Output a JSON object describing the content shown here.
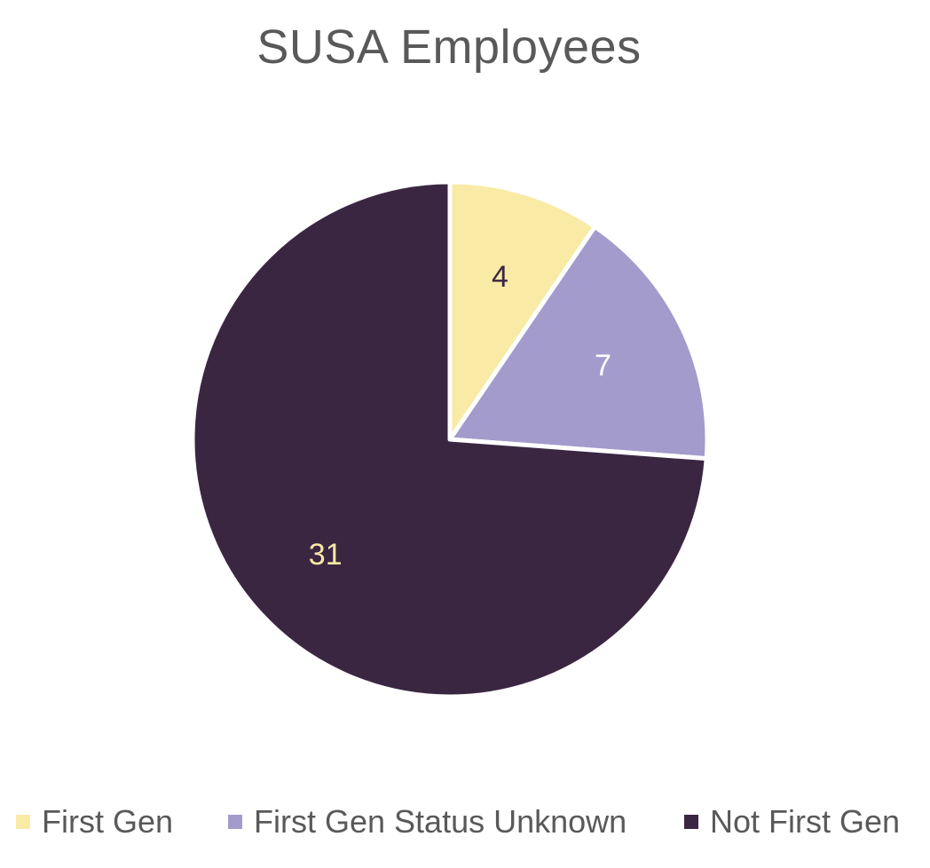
{
  "chart_data": {
    "type": "pie",
    "title": "SUSA Employees",
    "categories": [
      "First Gen",
      "First Gen Status Unknown",
      "Not First Gen"
    ],
    "values": [
      4,
      7,
      31
    ],
    "colors": [
      "#F9EAA5",
      "#A39BCB",
      "#3B2642"
    ],
    "data_label_colors": [
      "#3B2642",
      "#FFFFFF",
      "#F9EAA5"
    ],
    "start_angle": "12 o'clock",
    "direction": "clockwise",
    "data_labels": true,
    "legend_position": "bottom"
  }
}
